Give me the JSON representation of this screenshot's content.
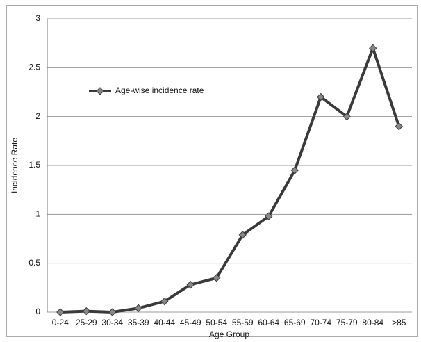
{
  "chart_data": {
    "type": "line",
    "xlabel": "Age Group",
    "ylabel": "Incidence Rate",
    "categories": [
      "0-24",
      "25-29",
      "30-34",
      "35-39",
      "40-44",
      "45-49",
      "50-54",
      "55-59",
      "60-64",
      "65-69",
      "70-74",
      "75-79",
      "80-84",
      ">85"
    ],
    "series": [
      {
        "name": "Age-wise incidence rate",
        "color": "#3a3a3a",
        "values": [
          0,
          0.01,
          0,
          0.04,
          0.11,
          0.28,
          0.35,
          0.79,
          0.98,
          1.45,
          2.2,
          2.0,
          2.7,
          1.9
        ]
      }
    ],
    "ylim": [
      0,
      3
    ],
    "yticks": [
      0,
      0.5,
      1,
      1.5,
      2,
      2.5,
      3
    ],
    "grid": true,
    "legend": "upper left"
  }
}
